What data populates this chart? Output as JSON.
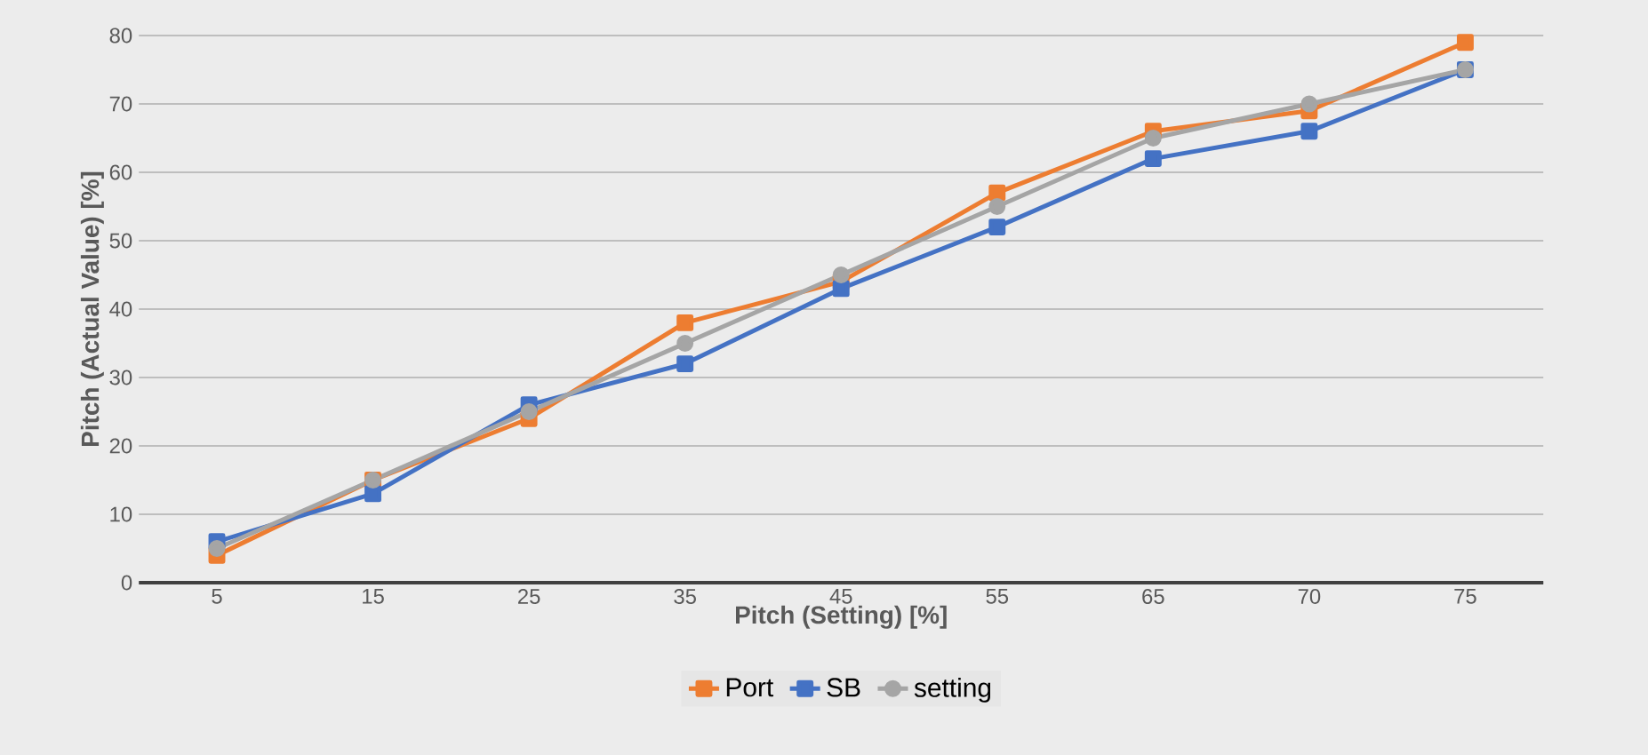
{
  "chart_data": {
    "type": "line",
    "xlabel": "Pitch (Setting) [%]",
    "ylabel": "Pitch (Actual Value) [%]",
    "categories": [
      "5",
      "15",
      "25",
      "35",
      "45",
      "55",
      "65",
      "70",
      "75"
    ],
    "series": [
      {
        "name": "Port",
        "color": "#ed7d31",
        "marker": "square",
        "values": [
          4,
          15,
          24,
          38,
          44,
          57,
          66,
          69,
          79
        ]
      },
      {
        "name": "SB",
        "color": "#4472c4",
        "marker": "square",
        "values": [
          6,
          13,
          26,
          32,
          43,
          52,
          62,
          66,
          75
        ]
      },
      {
        "name": "setting",
        "color": "#a5a5a5",
        "marker": "circle",
        "values": [
          5,
          15,
          25,
          35,
          45,
          55,
          65,
          70,
          75
        ]
      }
    ],
    "ylim": [
      0,
      80
    ],
    "yticks": [
      0,
      10,
      20,
      30,
      40,
      50,
      60,
      70,
      80
    ],
    "grid": "y",
    "legend": "bottom",
    "line_style": "solid"
  }
}
